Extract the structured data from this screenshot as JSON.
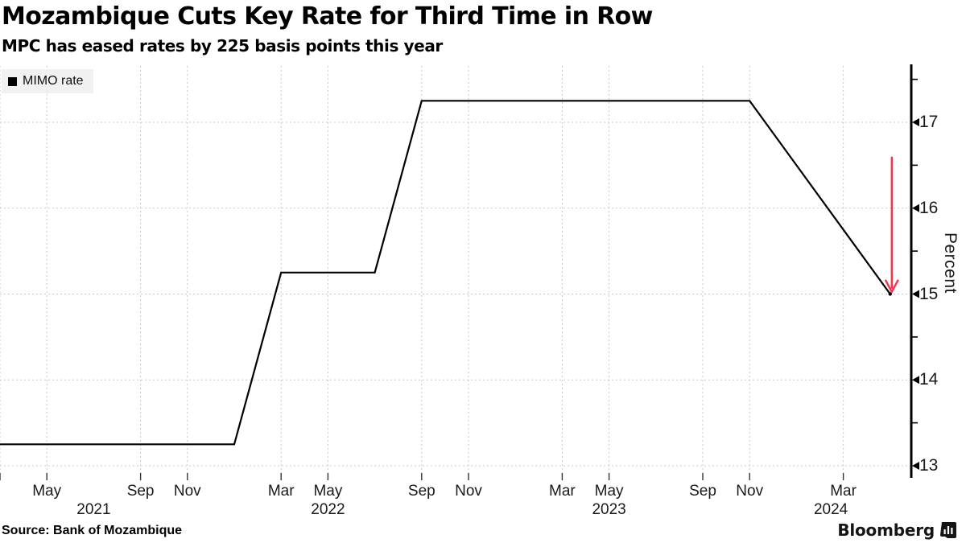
{
  "chart_data": {
    "type": "line",
    "title": "Mozambique Cuts Key Rate for Third Time in Row",
    "subtitle": "MPC has eased rates by 225 basis points this year",
    "legend": [
      {
        "label": "MIMO rate",
        "color": "#000000"
      }
    ],
    "legend_position": "top-left",
    "grid": true,
    "ylabel": "Percent",
    "ylim": [
      12.8,
      17.65
    ],
    "y_axis_side": "right",
    "y_major_ticks": [
      13,
      14,
      15,
      16,
      17
    ],
    "y_minor_ticks": [
      13.5,
      14.5,
      15.5,
      16.5,
      17.5
    ],
    "x_range_start": "2021-03",
    "x_range_end": "2024-06",
    "x_ticks": [
      {
        "label": "May",
        "date": "2021-05"
      },
      {
        "label": "Sep",
        "date": "2021-09"
      },
      {
        "label": "Nov",
        "date": "2021-11"
      },
      {
        "label": "Mar",
        "date": "2022-03"
      },
      {
        "label": "May",
        "date": "2022-05"
      },
      {
        "label": "Sep",
        "date": "2022-09"
      },
      {
        "label": "Nov",
        "date": "2022-11"
      },
      {
        "label": "Mar",
        "date": "2023-03"
      },
      {
        "label": "May",
        "date": "2023-05"
      },
      {
        "label": "Sep",
        "date": "2023-09"
      },
      {
        "label": "Nov",
        "date": "2023-11"
      },
      {
        "label": "Mar",
        "date": "2024-03"
      }
    ],
    "x_grid_dates": [
      "2021-03",
      "2021-05",
      "2021-09",
      "2021-11",
      "2022-03",
      "2022-05",
      "2022-09",
      "2022-11",
      "2023-03",
      "2023-05",
      "2023-09",
      "2023-11",
      "2024-03"
    ],
    "year_labels": [
      {
        "label": "2021",
        "anchor": "2021-07-01"
      },
      {
        "label": "2022",
        "anchor": "2022-05-01"
      },
      {
        "label": "2023",
        "anchor": "2023-05-01"
      },
      {
        "label": "2024",
        "anchor": "2024-02-15"
      }
    ],
    "series": [
      {
        "name": "MIMO rate",
        "color": "#000000",
        "points": [
          {
            "date": "2021-03",
            "value": 13.25
          },
          {
            "date": "2022-01",
            "value": 13.25
          },
          {
            "date": "2022-03",
            "value": 15.25
          },
          {
            "date": "2022-07",
            "value": 15.25
          },
          {
            "date": "2022-09",
            "value": 17.25
          },
          {
            "date": "2023-11",
            "value": 17.25
          },
          {
            "date": "2024-01",
            "value": 16.5
          },
          {
            "date": "2024-03",
            "value": 15.75
          },
          {
            "date": "2024-05",
            "value": 15.0
          }
        ]
      }
    ],
    "annotations": [
      {
        "type": "arrow-down",
        "date": "2024-05",
        "from_value": 16.6,
        "to_value": 15.1,
        "color": "#f5334f"
      }
    ],
    "grid_color": "#c8c8c8",
    "axis_color": "#000000"
  },
  "footer": {
    "source": "Source: Bank of Mozambique",
    "brand": "Bloomberg"
  }
}
